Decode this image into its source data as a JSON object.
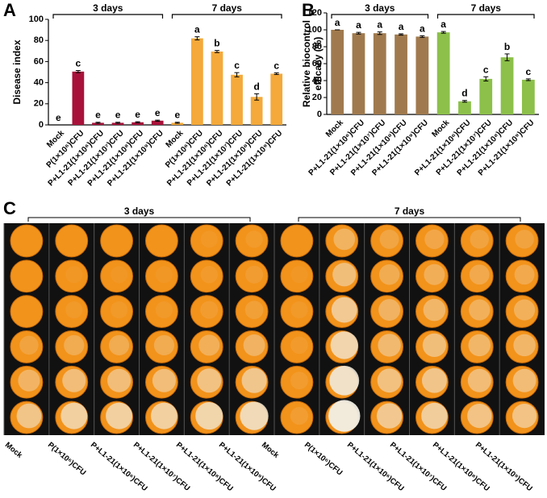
{
  "chart_data": [
    {
      "type": "bar",
      "panel_label": "A",
      "ylabel": [
        "Disease index"
      ],
      "ylim": [
        0,
        100
      ],
      "yticks": [
        0,
        20,
        40,
        60,
        80,
        100
      ],
      "series": [
        {
          "name": "3 days",
          "color": "#a8123a",
          "categories": [
            "Mock",
            "P(1×10⁶)CFU",
            "P+L1-21(1×10⁶)CFU",
            "P+L1-21(1×10⁷)CFU",
            "P+L1-21(1×10⁸)CFU",
            "P+L1-21(1×10⁹)CFU"
          ],
          "values": [
            0,
            50.5,
            2,
            2,
            2.5,
            4
          ],
          "errors": [
            0,
            1,
            0.5,
            0.5,
            0.5,
            0.5
          ],
          "letters": [
            "e",
            "c",
            "e",
            "e",
            "e",
            "e"
          ]
        },
        {
          "name": "7 days",
          "color": "#f4a93a",
          "categories": [
            "Mock",
            "P(1×10⁶)CFU",
            "P+L1-21(1×10⁶)CFU",
            "P+L1-21(1×10⁷)CFU",
            "P+L1-21(1×10⁸)CFU",
            "P+L1-21(1×10⁹)CFU"
          ],
          "values": [
            2,
            82,
            69.5,
            47.5,
            26.5,
            48.5
          ],
          "errors": [
            0.5,
            1.5,
            1,
            2,
            3,
            0.8
          ],
          "letters": [
            "e",
            "a",
            "b",
            "c",
            "d",
            "c"
          ]
        }
      ]
    },
    {
      "type": "bar",
      "panel_label": "B",
      "ylabel": [
        "Relative biocontrol",
        "efficacy (%)"
      ],
      "ylim": [
        0,
        120
      ],
      "yticks": [
        0,
        20,
        40,
        60,
        80,
        100,
        120
      ],
      "series": [
        {
          "name": "3 days",
          "color": "#a07a4e",
          "categories": [
            "Mock",
            "P+L1-21(1×10⁶)CFU",
            "P+L1-21(1×10⁷)CFU",
            "P+L1-21(1×10⁸)CFU",
            "P+L1-21(1×10⁹)CFU"
          ],
          "values": [
            100,
            96,
            96,
            94.5,
            92
          ],
          "errors": [
            0,
            1,
            1.5,
            0.8,
            1
          ],
          "letters": [
            "a",
            "a",
            "a",
            "a",
            "a"
          ]
        },
        {
          "name": "7 days",
          "color": "#8cc04a",
          "categories": [
            "Mock",
            "P+L1-21(1×10⁶)CFU",
            "P+L1-21(1×10⁷)CFU",
            "P+L1-21(1×10⁸)CFU",
            "P+L1-21(1×10⁹)CFU"
          ],
          "values": [
            97,
            15.5,
            42,
            67.5,
            41
          ],
          "errors": [
            1,
            1,
            2.5,
            4,
            1
          ],
          "letters": [
            "a",
            "d",
            "c",
            "b",
            "c"
          ]
        }
      ]
    }
  ],
  "photo": {
    "label": "C",
    "groups": [
      {
        "name": "3 days",
        "columns": [
          "Mock",
          "P(1×10⁶)CFU",
          "P+L1-21(1×10⁶)CFU",
          "P+L1-21(1×10⁷)CFU",
          "P+L1-21(1×10⁸)CFU",
          "P+L1-21(1×10⁹)CFU"
        ]
      },
      {
        "name": "7 days",
        "columns": [
          "Mock",
          "P(1×10⁶)CFU",
          "P+L1-21(1×10⁶)CFU",
          "P+L1-21(1×10⁷)CFU",
          "P+L1-21(1×10⁸)CFU",
          "P+L1-21(1×10⁹)CFU"
        ]
      }
    ]
  }
}
